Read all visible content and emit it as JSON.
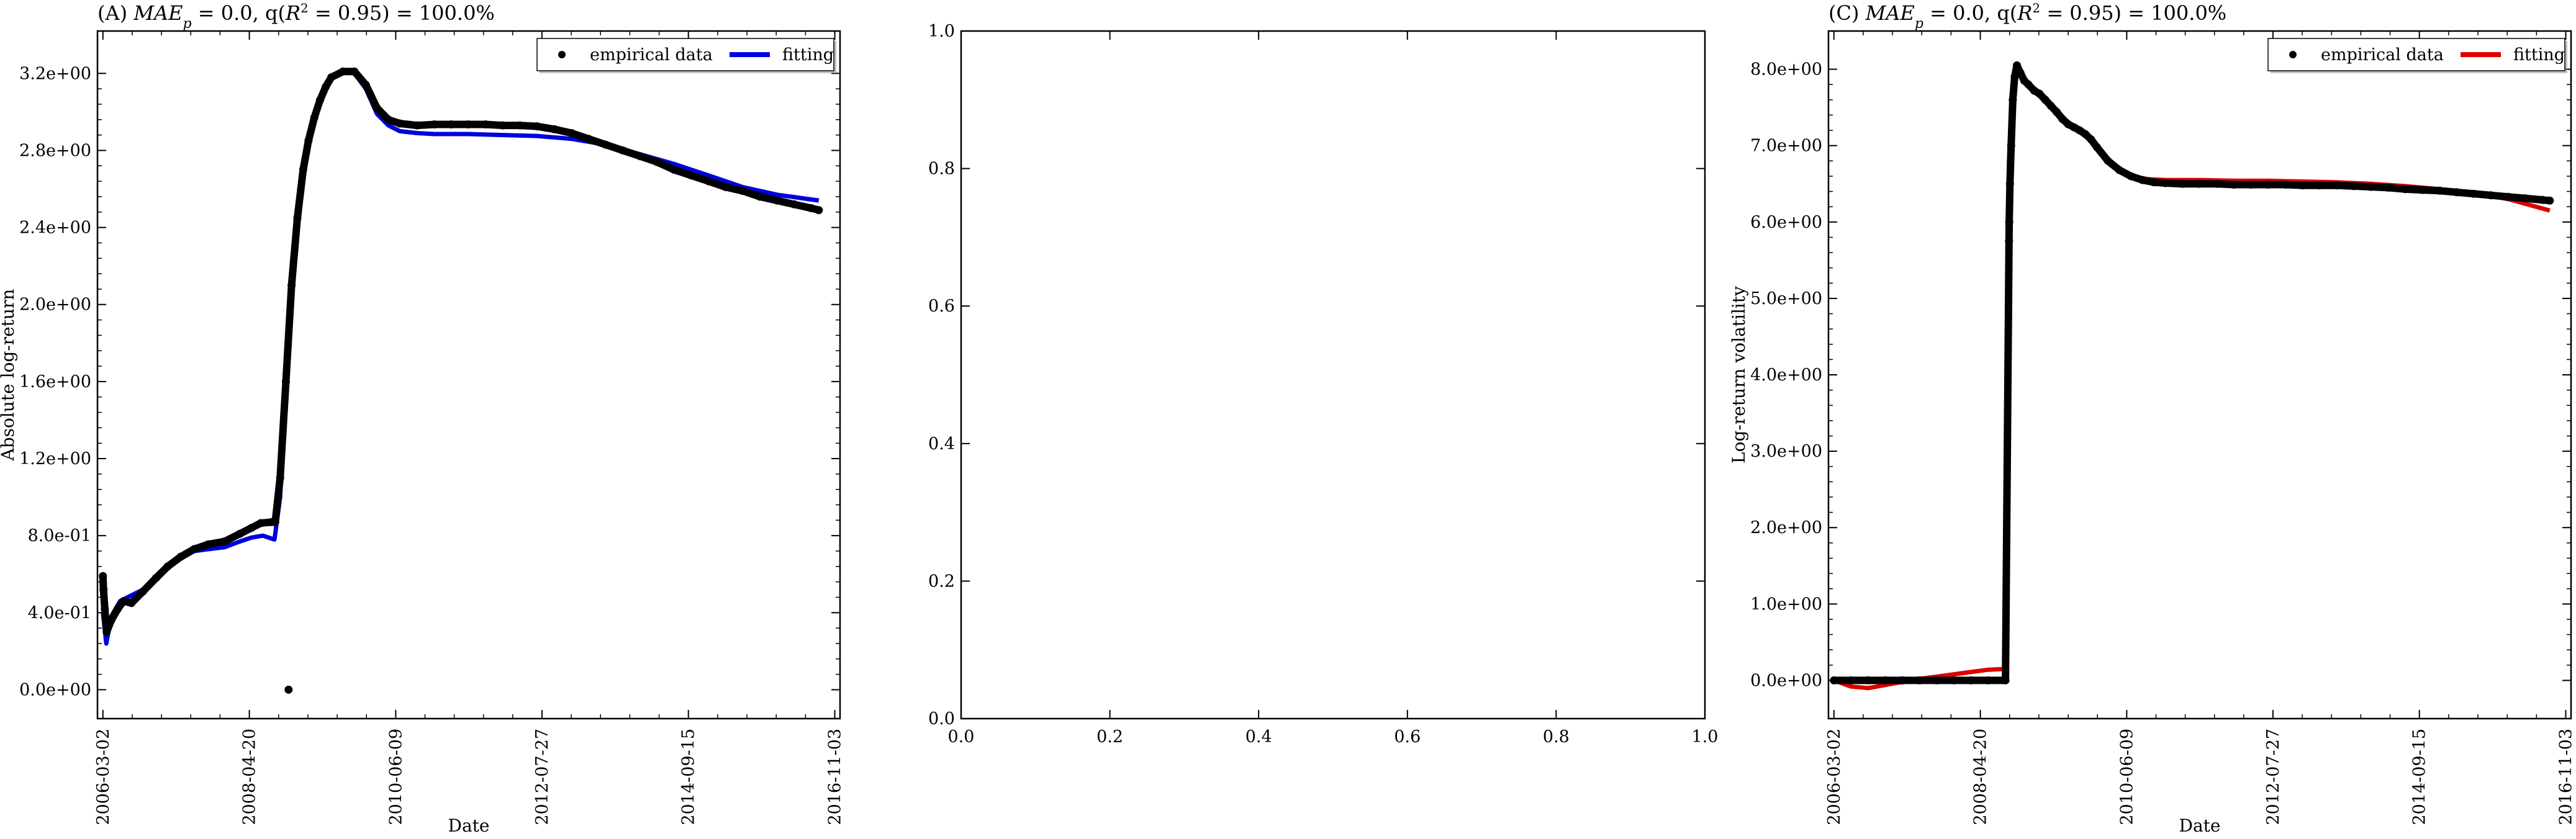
{
  "chart_data": [
    {
      "panel": "A",
      "type": "scatter",
      "title": "(A) MAE_p = 0.0, q(R^2 = 0.95) = 100.0%",
      "xlabel": "Date",
      "ylabel": "Absolute log-return",
      "x_tick_labels": [
        "2006-03-02",
        "2008-04-20",
        "2010-06-09",
        "2012-07-27",
        "2014-09-15",
        "2016-11-03"
      ],
      "y_tick_labels": [
        "0.0e+00",
        "4.0e-01",
        "8.0e-01",
        "1.2e+00",
        "1.6e+00",
        "2.0e+00",
        "2.4e+00",
        "2.8e+00",
        "3.2e+00"
      ],
      "y_ticks": [
        0,
        0.4,
        0.8,
        1.2,
        1.6,
        2.0,
        2.4,
        2.8,
        3.2
      ],
      "xlim": [
        "2006-02-01",
        "2016-12-01"
      ],
      "ylim": [
        -0.15,
        3.42
      ],
      "legend": {
        "position": "top-right",
        "entries": [
          "empirical data",
          "fitting"
        ]
      },
      "series": [
        {
          "name": "empirical data",
          "style": "points",
          "color": "#000000",
          "x": [
            "2006-03-02",
            "2006-03-05",
            "2006-03-12",
            "2006-03-22",
            "2006-04-15",
            "2006-05-20",
            "2006-06-20",
            "2006-08-01",
            "2006-10-01",
            "2006-12-10",
            "2007-02-10",
            "2007-04-20",
            "2007-07-01",
            "2007-09-15",
            "2007-12-10",
            "2008-03-01",
            "2008-05-01",
            "2008-06-20",
            "2008-08-15",
            "2008-09-05",
            "2008-10-01",
            "2008-11-01",
            "2008-12-01",
            "2009-01-01",
            "2009-02-01",
            "2009-03-01",
            "2009-04-01",
            "2009-05-01",
            "2009-06-01",
            "2009-07-01",
            "2009-09-01",
            "2009-11-01",
            "2010-01-01",
            "2010-03-01",
            "2010-05-01",
            "2010-07-01",
            "2010-10-01",
            "2011-01-01",
            "2011-04-01",
            "2011-07-01",
            "2011-10-01",
            "2012-01-01",
            "2012-04-01",
            "2012-07-01",
            "2012-10-01",
            "2013-01-01",
            "2013-04-01",
            "2013-07-01",
            "2013-10-01",
            "2014-01-01",
            "2014-04-01",
            "2014-07-01",
            "2014-10-01",
            "2015-01-01",
            "2015-04-01",
            "2015-07-01",
            "2015-10-01",
            "2016-01-01",
            "2016-04-01",
            "2016-07-01",
            "2016-08-10",
            "2008-11-15"
          ],
          "y": [
            0.59,
            0.52,
            0.42,
            0.3,
            0.36,
            0.42,
            0.46,
            0.45,
            0.51,
            0.58,
            0.64,
            0.69,
            0.73,
            0.755,
            0.77,
            0.81,
            0.84,
            0.865,
            0.87,
            0.87,
            1.1,
            1.6,
            2.1,
            2.45,
            2.7,
            2.85,
            2.97,
            3.06,
            3.13,
            3.18,
            3.21,
            3.21,
            3.14,
            3.02,
            2.96,
            2.94,
            2.93,
            2.935,
            2.935,
            2.935,
            2.935,
            2.93,
            2.93,
            2.925,
            2.91,
            2.89,
            2.86,
            2.83,
            2.8,
            2.77,
            2.74,
            2.7,
            2.67,
            2.64,
            2.61,
            2.59,
            2.56,
            2.54,
            2.52,
            2.5,
            2.49,
            0.0
          ]
        },
        {
          "name": "fitting",
          "style": "line",
          "color": "#0000dd",
          "x": [
            "2006-03-02",
            "2006-03-20",
            "2006-04-15",
            "2006-06-01",
            "2006-08-01",
            "2006-10-01",
            "2006-12-10",
            "2007-02-10",
            "2007-04-20",
            "2007-07-01",
            "2007-09-15",
            "2007-12-10",
            "2008-03-01",
            "2008-05-01",
            "2008-07-01",
            "2008-09-01",
            "2008-10-01",
            "2008-11-01",
            "2008-12-01",
            "2009-01-01",
            "2009-02-01",
            "2009-03-01",
            "2009-04-01",
            "2009-05-01",
            "2009-06-01",
            "2009-07-01",
            "2009-09-01",
            "2009-11-01",
            "2010-01-01",
            "2010-03-01",
            "2010-05-01",
            "2010-07-01",
            "2010-10-01",
            "2011-01-01",
            "2011-07-01",
            "2012-01-01",
            "2012-07-01",
            "2013-01-01",
            "2013-07-01",
            "2014-01-01",
            "2014-07-01",
            "2015-01-01",
            "2015-07-01",
            "2016-01-01",
            "2016-08-10"
          ],
          "y": [
            0.4,
            0.24,
            0.38,
            0.46,
            0.49,
            0.52,
            0.57,
            0.63,
            0.68,
            0.72,
            0.73,
            0.74,
            0.77,
            0.79,
            0.8,
            0.78,
            1.0,
            1.55,
            2.1,
            2.45,
            2.7,
            2.86,
            2.98,
            3.07,
            3.14,
            3.19,
            3.21,
            3.2,
            3.12,
            2.99,
            2.93,
            2.9,
            2.89,
            2.885,
            2.885,
            2.88,
            2.875,
            2.86,
            2.83,
            2.78,
            2.73,
            2.67,
            2.61,
            2.57,
            2.54
          ]
        }
      ]
    },
    {
      "panel": "B",
      "type": "scatter",
      "x_tick_labels": [
        "0.0",
        "0.2",
        "0.4",
        "0.6",
        "0.8",
        "1.0"
      ],
      "y_tick_labels": [
        "0.0",
        "0.2",
        "0.4",
        "0.6",
        "0.8",
        "1.0"
      ],
      "xlim": [
        0,
        1
      ],
      "ylim": [
        0,
        1
      ],
      "series": []
    },
    {
      "panel": "C",
      "type": "scatter",
      "title": "(C) MAE_p = 0.0, q(R^2 = 0.95) = 100.0%",
      "xlabel": "Date",
      "ylabel": "Log-return volatility",
      "x_tick_labels": [
        "2006-03-02",
        "2008-04-20",
        "2010-06-09",
        "2012-07-27",
        "2014-09-15",
        "2016-11-03"
      ],
      "y_tick_labels": [
        "0.0e+00",
        "1.0e+00",
        "2.0e+00",
        "3.0e+00",
        "4.0e+00",
        "5.0e+00",
        "6.0e+00",
        "7.0e+00",
        "8.0e+00"
      ],
      "y_ticks": [
        0,
        1,
        2,
        3,
        4,
        5,
        6,
        7,
        8
      ],
      "xlim": [
        "2006-02-01",
        "2016-12-01"
      ],
      "ylim": [
        -0.5,
        8.5
      ],
      "legend": {
        "position": "top-right",
        "entries": [
          "empirical data",
          "fitting"
        ]
      },
      "series": [
        {
          "name": "empirical data",
          "style": "points",
          "color": "#000000",
          "x": [
            "2006-03-02",
            "2006-06-01",
            "2006-09-01",
            "2006-12-01",
            "2007-03-01",
            "2007-06-01",
            "2007-09-01",
            "2007-12-01",
            "2008-03-01",
            "2008-06-01",
            "2008-09-01",
            "2008-09-20",
            "2008-09-21",
            "2008-09-25",
            "2008-10-01",
            "2008-10-10",
            "2008-10-20",
            "2008-11-01",
            "2008-11-20",
            "2008-12-10",
            "2009-01-01",
            "2009-02-01",
            "2009-03-01",
            "2009-04-01",
            "2009-05-01",
            "2009-06-01",
            "2009-07-01",
            "2009-08-01",
            "2009-09-01",
            "2009-10-01",
            "2009-11-01",
            "2009-12-01",
            "2010-01-01",
            "2010-03-01",
            "2010-05-01",
            "2010-07-01",
            "2010-09-01",
            "2010-11-01",
            "2011-01-01",
            "2011-04-01",
            "2011-07-01",
            "2011-10-01",
            "2012-01-01",
            "2012-04-01",
            "2012-07-01",
            "2012-10-01",
            "2013-01-01",
            "2013-04-01",
            "2013-07-01",
            "2013-10-01",
            "2014-01-01",
            "2014-04-01",
            "2014-07-01",
            "2014-10-01",
            "2015-01-01",
            "2015-04-01",
            "2015-07-01",
            "2015-10-01",
            "2016-01-01",
            "2016-04-01",
            "2016-07-01",
            "2016-08-10"
          ],
          "y": [
            0.0,
            0.0,
            0.0,
            0.0,
            0.0,
            0.0,
            0.0,
            0.0,
            0.0,
            0.0,
            0.0,
            5.75,
            6.0,
            6.5,
            7.0,
            7.6,
            7.9,
            8.05,
            7.95,
            7.85,
            7.8,
            7.72,
            7.68,
            7.6,
            7.52,
            7.44,
            7.35,
            7.28,
            7.24,
            7.2,
            7.15,
            7.08,
            6.98,
            6.8,
            6.68,
            6.6,
            6.55,
            6.52,
            6.51,
            6.5,
            6.5,
            6.5,
            6.49,
            6.49,
            6.49,
            6.49,
            6.48,
            6.48,
            6.48,
            6.47,
            6.46,
            6.45,
            6.43,
            6.42,
            6.41,
            6.39,
            6.37,
            6.35,
            6.33,
            6.31,
            6.29,
            6.28
          ]
        },
        {
          "name": "fitting",
          "style": "line",
          "color": "#dd0000",
          "x": [
            "2006-03-02",
            "2006-06-01",
            "2006-09-01",
            "2006-12-01",
            "2007-03-01",
            "2007-06-01",
            "2007-09-01",
            "2007-12-01",
            "2008-03-01",
            "2008-06-01",
            "2008-09-01",
            "2008-09-20",
            "2008-10-01",
            "2008-10-15",
            "2008-11-01",
            "2008-12-01",
            "2009-01-01",
            "2009-03-01",
            "2009-05-01",
            "2009-07-01",
            "2009-09-01",
            "2009-11-01",
            "2010-01-01",
            "2010-03-01",
            "2010-05-01",
            "2010-07-01",
            "2010-10-01",
            "2011-01-01",
            "2011-07-01",
            "2012-01-01",
            "2012-07-01",
            "2013-01-01",
            "2013-07-01",
            "2014-01-01",
            "2014-07-01",
            "2015-01-01",
            "2015-07-01",
            "2016-01-01",
            "2016-08-10"
          ],
          "y": [
            0.0,
            -0.08,
            -0.1,
            -0.06,
            -0.02,
            0.02,
            0.05,
            0.08,
            0.11,
            0.14,
            0.15,
            6.8,
            7.3,
            7.7,
            7.95,
            7.9,
            7.82,
            7.66,
            7.5,
            7.34,
            7.22,
            7.13,
            7.0,
            6.8,
            6.68,
            6.6,
            6.56,
            6.55,
            6.55,
            6.54,
            6.54,
            6.53,
            6.52,
            6.5,
            6.47,
            6.43,
            6.38,
            6.3,
            6.15
          ]
        }
      ]
    }
  ]
}
